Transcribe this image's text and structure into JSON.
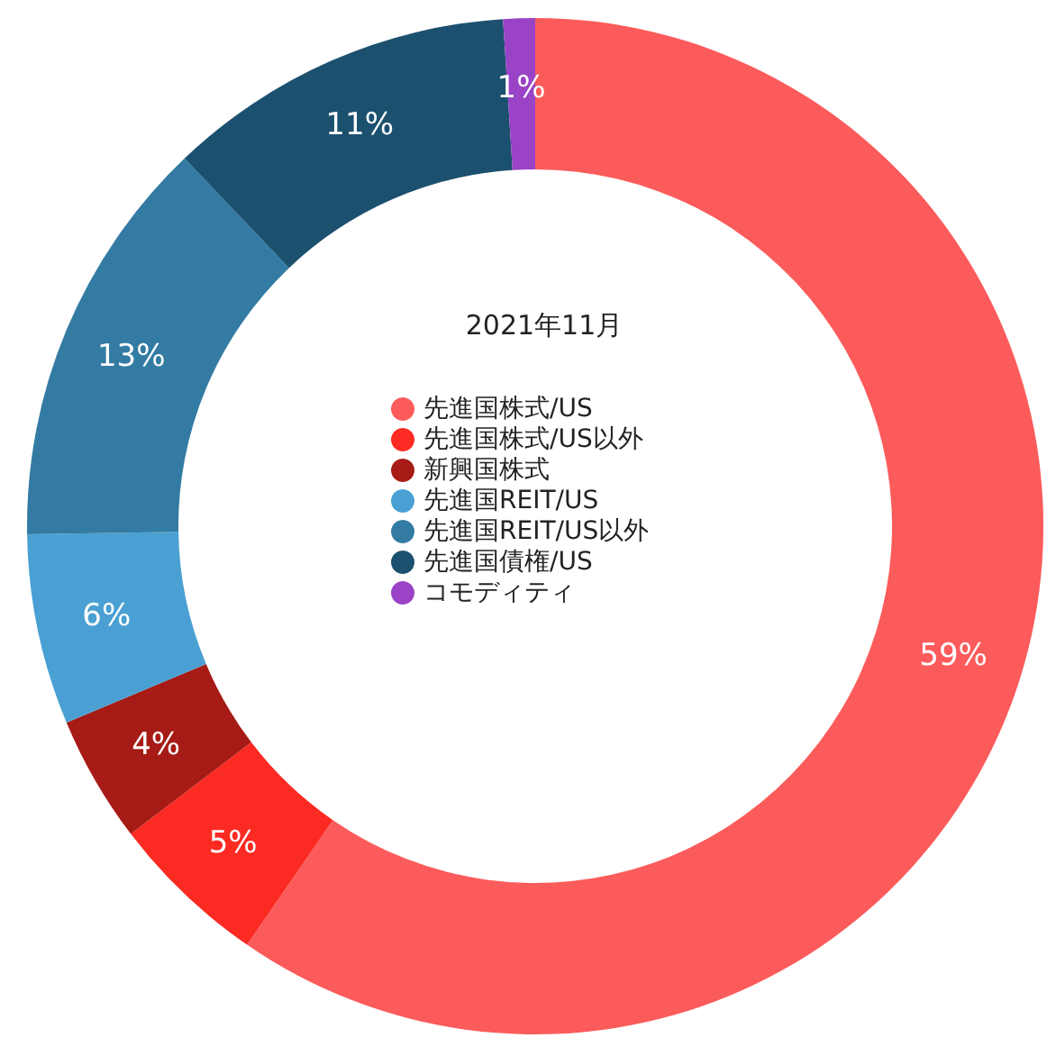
{
  "chart_data": {
    "type": "donut",
    "title": "2021年11月",
    "categories": [
      "先進国株式/US",
      "先進国株式/US以外",
      "新興国株式",
      "先進国REIT/US",
      "先進国REIT/US以外",
      "先進国債権/US",
      "コモディティ"
    ],
    "values": [
      59,
      5,
      4,
      6,
      13,
      11,
      1
    ],
    "colors": [
      "#fc5b5b",
      "#fb2a22",
      "#a61b15",
      "#4aa0d2",
      "#337ba3",
      "#1c506f",
      "#9a43c6"
    ],
    "value_labels": [
      "59%",
      "5%",
      "4%",
      "6%",
      "13%",
      "11%",
      "1%"
    ],
    "legend": "center"
  }
}
